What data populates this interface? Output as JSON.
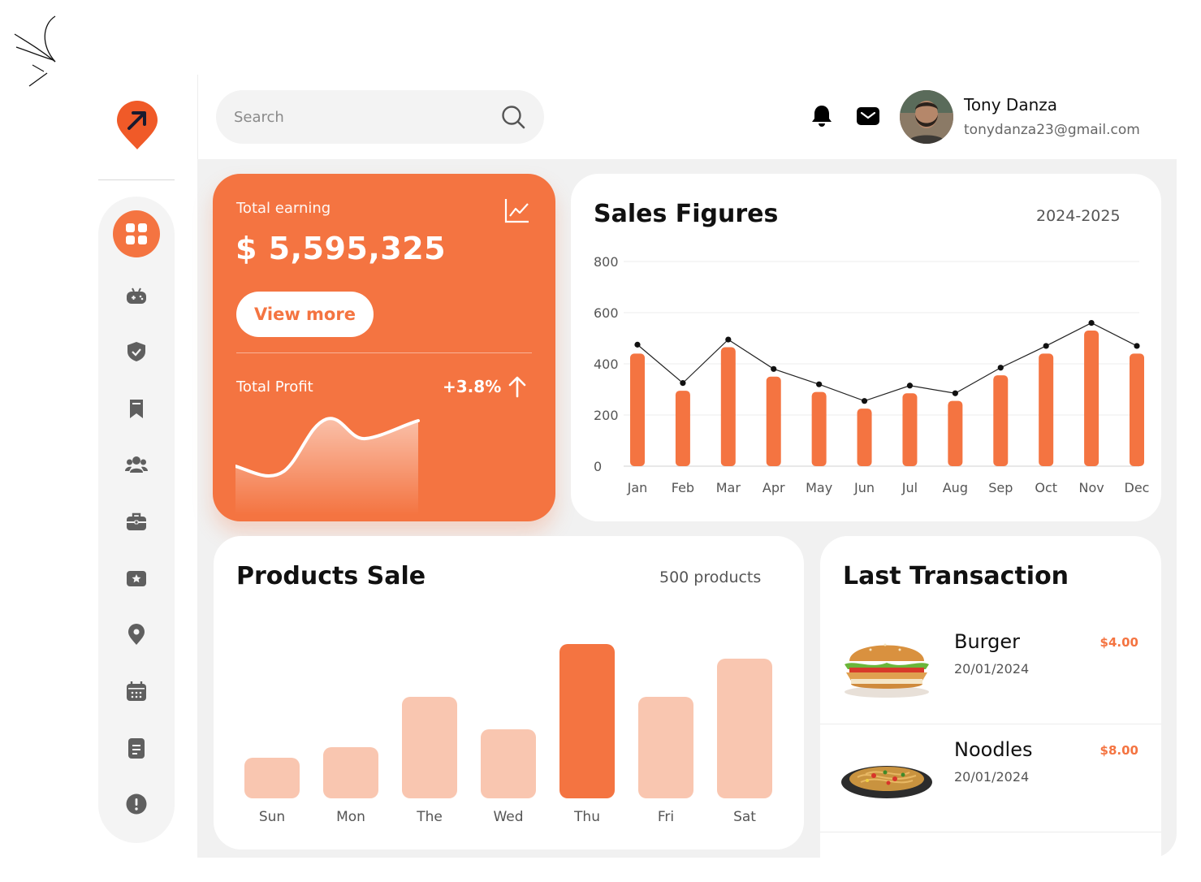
{
  "search": {
    "placeholder": "Search",
    "icon": "search-icon"
  },
  "header": {
    "notifications_icon": "bell-icon",
    "messages_icon": "mail-icon"
  },
  "user": {
    "name": "Tony Danza",
    "email": "tonydanza23@gmail.com"
  },
  "sidebar": {
    "items": [
      {
        "name": "dashboard",
        "icon": "grid-icon",
        "active": true
      },
      {
        "name": "games",
        "icon": "gamepad-icon"
      },
      {
        "name": "security",
        "icon": "shield-icon"
      },
      {
        "name": "bookmarks",
        "icon": "bookmark-icon"
      },
      {
        "name": "users",
        "icon": "users-icon"
      },
      {
        "name": "work",
        "icon": "briefcase-icon"
      },
      {
        "name": "favorites",
        "icon": "star-ticket-icon"
      },
      {
        "name": "location",
        "icon": "location-icon"
      },
      {
        "name": "calendar",
        "icon": "calendar-icon"
      },
      {
        "name": "documents",
        "icon": "document-icon"
      },
      {
        "name": "info",
        "icon": "alert-icon"
      }
    ]
  },
  "earning": {
    "label": "Total earning",
    "amount": "$ 5,595,325",
    "button": "View more",
    "profit_label": "Total Profit",
    "profit_value": "+3.8%"
  },
  "colors": {
    "accent": "#f47441",
    "accent_light": "#f9c6b0"
  },
  "sales": {
    "title": "Sales Figures",
    "period": "2024-2025"
  },
  "products": {
    "title": "Products Sale",
    "count": "500 products"
  },
  "transactions": {
    "title": "Last Transaction",
    "items": [
      {
        "name": "Burger",
        "date": "20/01/2024",
        "price": "$4.00"
      },
      {
        "name": "Noodles",
        "date": "20/01/2024",
        "price": "$8.00"
      }
    ]
  },
  "chart_data": [
    {
      "type": "bar",
      "title": "Sales Figures",
      "categories": [
        "Jan",
        "Feb",
        "Mar",
        "Apr",
        "May",
        "Jun",
        "Jul",
        "Aug",
        "Sep",
        "Oct",
        "Nov",
        "Dec"
      ],
      "series": [
        {
          "values": [
            440,
            295,
            465,
            350,
            290,
            225,
            285,
            255,
            355,
            440,
            530,
            440
          ]
        },
        {
          "values": [
            475,
            325,
            495,
            380,
            320,
            255,
            315,
            285,
            385,
            470,
            560,
            470
          ]
        }
      ],
      "yticks": [
        0,
        200,
        400,
        600,
        800
      ],
      "ylim": [
        0,
        800
      ],
      "grid": true
    },
    {
      "type": "bar",
      "title": "Products Sale",
      "categories": [
        "Sun",
        "Mon",
        "The",
        "Wed",
        "Thu",
        "Fri",
        "Sat"
      ],
      "values": [
        50,
        63,
        125,
        85,
        190,
        125,
        172
      ],
      "highlight_index": 4
    }
  ]
}
